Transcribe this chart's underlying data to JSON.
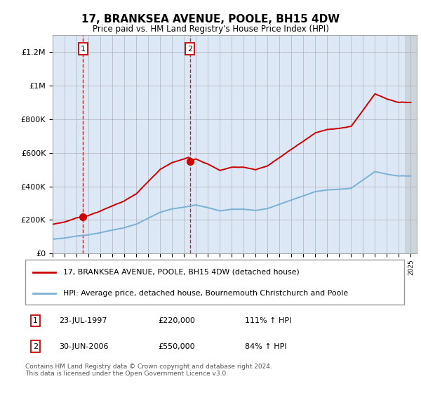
{
  "title": "17, BRANKSEA AVENUE, POOLE, BH15 4DW",
  "subtitle": "Price paid vs. HM Land Registry's House Price Index (HPI)",
  "ylim": [
    0,
    1300000
  ],
  "xlim_start": 1995.0,
  "xlim_end": 2025.5,
  "sale1_date": 1997.55,
  "sale1_price": 220000,
  "sale2_date": 2006.5,
  "sale2_price": 550000,
  "legend_line1": "17, BRANKSEA AVENUE, POOLE, BH15 4DW (detached house)",
  "legend_line2": "HPI: Average price, detached house, Bournemouth Christchurch and Poole",
  "footnote": "Contains HM Land Registry data © Crown copyright and database right 2024.\nThis data is licensed under the Open Government Licence v3.0.",
  "hpi_color": "#7ab0d4",
  "sale_color": "#cc0000",
  "bg_color": "#dce8f5",
  "plot_bg": "#ffffff",
  "yticks": [
    0,
    200000,
    400000,
    600000,
    800000,
    1000000,
    1200000
  ],
  "ytick_labels": [
    "£0",
    "£200K",
    "£400K",
    "£600K",
    "£800K",
    "£1M",
    "£1.2M"
  ],
  "hpi_anchors_years": [
    1995,
    1996,
    1997,
    1998,
    1999,
    2000,
    2001,
    2002,
    2003,
    2004,
    2005,
    2006,
    2007,
    2008,
    2009,
    2010,
    2011,
    2012,
    2013,
    2014,
    2015,
    2016,
    2017,
    2018,
    2019,
    2020,
    2021,
    2022,
    2023,
    2024,
    2025
  ],
  "hpi_anchors_vals": [
    85000,
    92000,
    104000,
    112000,
    125000,
    140000,
    155000,
    175000,
    210000,
    245000,
    265000,
    275000,
    290000,
    275000,
    255000,
    265000,
    265000,
    258000,
    270000,
    295000,
    320000,
    345000,
    370000,
    380000,
    385000,
    390000,
    440000,
    490000,
    475000,
    465000,
    465000
  ],
  "current_year_marker": 2024.5
}
